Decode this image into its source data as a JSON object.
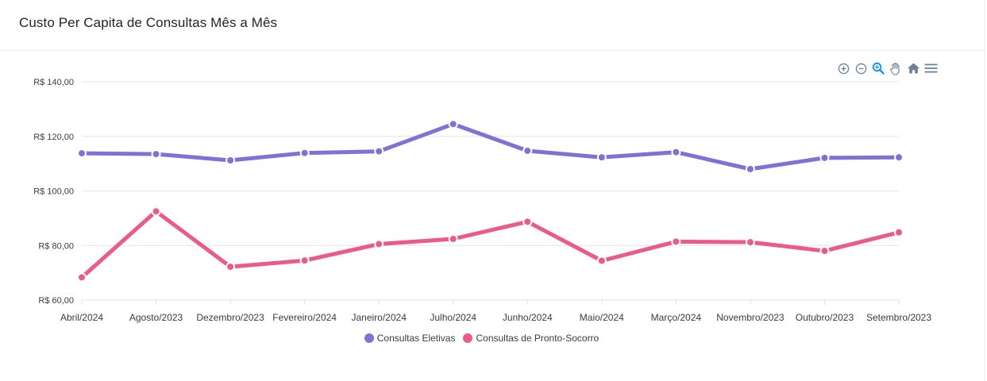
{
  "title": "Custo Per Capita de Consultas Mês a Mês",
  "toolbar": [
    "zoom-in-icon",
    "zoom-out-icon",
    "selection-zoom-icon",
    "pan-hand-icon",
    "reset-home-icon",
    "menu-icon"
  ],
  "colors": {
    "series_1": "#7d73d6",
    "series_2": "#ec5b86",
    "grid": "#e6e6e6",
    "toolbar_icon": "#6e8192",
    "toolbar_active": "#008ffb"
  },
  "chart_data": {
    "type": "line",
    "title": "",
    "xlabel": "",
    "ylabel": "",
    "categories": [
      "Abril/2024",
      "Agosto/2023",
      "Dezembro/2023",
      "Fevereiro/2024",
      "Janeiro/2024",
      "Julho/2024",
      "Junho/2024",
      "Maio/2024",
      "Março/2024",
      "Novembro/2023",
      "Outubro/2023",
      "Setembro/2023"
    ],
    "series": [
      {
        "name": "Consultas Eletivas",
        "values": [
          113.8,
          113.5,
          111.2,
          113.9,
          114.5,
          124.5,
          114.7,
          112.3,
          114.2,
          108.0,
          112.1,
          112.3
        ]
      },
      {
        "name": "Consultas de Pronto-Socorro",
        "values": [
          68.3,
          92.5,
          72.2,
          74.5,
          80.5,
          82.4,
          88.7,
          74.4,
          81.4,
          81.2,
          78.0,
          84.8
        ]
      }
    ],
    "ylim": [
      60,
      140
    ],
    "yticks": [
      60,
      80,
      100,
      120,
      140
    ],
    "ytick_labels": [
      "R$ 60,00",
      "R$ 80,00",
      "R$ 100,00",
      "R$ 120,00",
      "R$ 140,00"
    ],
    "grid": true,
    "legend_position": "bottom-center"
  }
}
